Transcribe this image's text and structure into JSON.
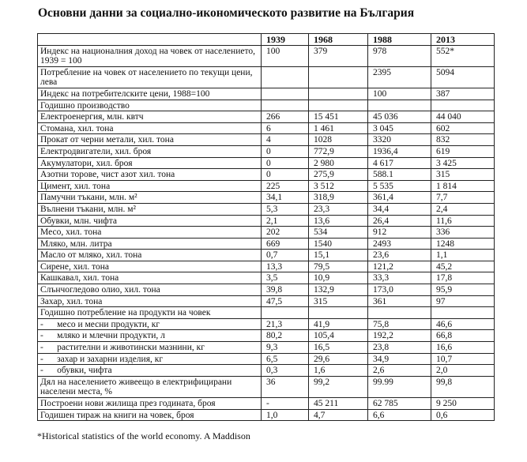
{
  "header": {
    "title": "Основни данни за социално-икономическото развитие на България"
  },
  "table": {
    "columns": [
      null,
      "1939",
      "1968",
      "1988",
      "2013"
    ],
    "rows": [
      [
        "Индекс на националния доход на човек от населението, 1939 = 100",
        "100",
        "379",
        "978",
        "552*"
      ],
      [
        "Потребление на човек от населението по текущи цени, лева",
        null,
        null,
        "2395",
        "5094"
      ],
      [
        "Индекс на потребителските цени, 1988=100",
        null,
        null,
        "100",
        "387"
      ],
      [
        "Годишно производство",
        null,
        null,
        null,
        null
      ],
      [
        "Електроенергия, млн. квтч",
        "266",
        "15 451",
        "45 036",
        "44 040"
      ],
      [
        "Стомана, хил. тона",
        "6",
        "1 461",
        "3 045",
        "602"
      ],
      [
        "Прокат от черни метали, хил. тона",
        "4",
        "1028",
        "3320",
        "832"
      ],
      [
        "Електродвигатели, хил. броя",
        "0",
        "772,9",
        "1936,4",
        "619"
      ],
      [
        "Акумулатори, хил. броя",
        "0",
        "2 980",
        "4 617",
        "3 425"
      ],
      [
        "Азотни торове, чист азот хил. тона",
        "0",
        "275,9",
        "588.1",
        "315"
      ],
      [
        "Цимент, хил. тона",
        "225",
        "3 512",
        "5 535",
        "1 814"
      ],
      [
        "Памучни тъкани, млн. м²",
        "34,1",
        "318,9",
        "361,4",
        "7,7"
      ],
      [
        "Вълнени тъкани, млн. м²",
        "5,3",
        "23,3",
        "34,4",
        "2,4"
      ],
      [
        "Обувки, млн. чифта",
        "2,1",
        "13,6",
        "26,4",
        "11,6"
      ],
      [
        "Месо, хил. тона",
        "202",
        "534",
        "912",
        "336"
      ],
      [
        "Мляко, млн. литра",
        "669",
        "1540",
        "2493",
        "1248"
      ],
      [
        "Масло от мляко, хил. тона",
        "0,7",
        "15,1",
        "23,6",
        "1,1"
      ],
      [
        "Сирене, хил. тона",
        "13,3",
        "79,5",
        "121,2",
        "45,2"
      ],
      [
        "Кашкавал, хил. тона",
        "3,5",
        "10,9",
        "33,3",
        "17,8"
      ],
      [
        "Слънчогледово олио, хил. тона",
        "39,8",
        "132,9",
        "173,0",
        "95,9"
      ],
      [
        "Захар, хил. тона",
        "47,5",
        "315",
        "361",
        "97"
      ],
      [
        "Годишно потребление на продукти на човек",
        null,
        null,
        null,
        null
      ],
      [
        "-      месо и месни продукти, кг",
        "21,3",
        "41,9",
        "75,8",
        "46,6"
      ],
      [
        "-      мляко и млечни продукти, л",
        "80,2",
        "105,4",
        "192,2",
        "66,8"
      ],
      [
        "-      растителни и животински мазнини, кг",
        "9,3",
        "16,5",
        "23,8",
        "16,6"
      ],
      [
        "-      захар и захарни изделия, кг",
        "6,5",
        "29,6",
        "34,9",
        "10,7"
      ],
      [
        "-      обувки, чифта",
        "0,3",
        "1,6",
        "2,6",
        "2,0"
      ],
      [
        "Дял на населението живеещо в електрифицирани населени места, %",
        "36",
        "99,2",
        "99.99",
        "99,8"
      ],
      [
        "Построени нови жилища през годината, броя",
        "-",
        "45 211",
        "62 785",
        "9 250"
      ],
      [
        "Годишен тираж на книги на човек, броя",
        "1,0",
        "4,7",
        "6,6",
        "0,6"
      ]
    ]
  },
  "footnote": "*Historical statistics of the world economy. A Maddison"
}
